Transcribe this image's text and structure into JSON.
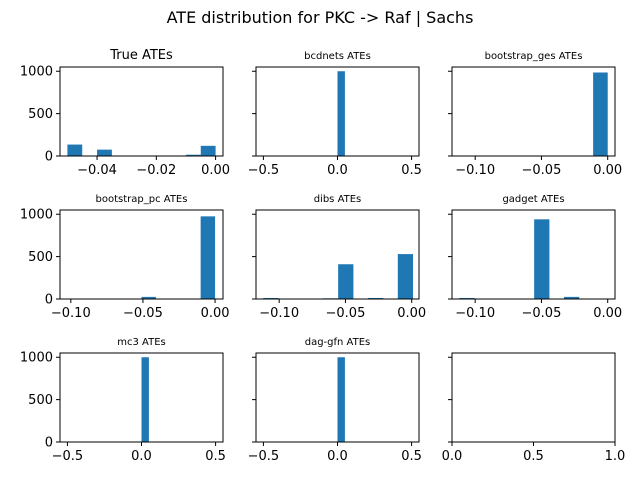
{
  "figure": {
    "suptitle": "ATE distribution for PKC -> Raf | Sachs",
    "bar_color": "#1f77b4"
  },
  "chart_data": [
    {
      "type": "bar",
      "title": "True ATEs",
      "xlim": [
        -0.0525,
        0.0025
      ],
      "ylim": [
        0,
        1050
      ],
      "xticks": [
        -0.04,
        -0.02,
        0.0
      ],
      "xtick_labels": [
        "−0.04",
        "−0.02",
        "0.00"
      ],
      "yticks": [
        0,
        500,
        1000
      ],
      "ytick_labels": [
        "0",
        "500",
        "1000"
      ],
      "bins": [
        {
          "x0": -0.05,
          "x1": -0.045,
          "value": 135
        },
        {
          "x0": -0.04,
          "x1": -0.035,
          "value": 75
        },
        {
          "x0": -0.01,
          "x1": -0.005,
          "value": 15
        },
        {
          "x0": -0.005,
          "x1": 0.0,
          "value": 120
        }
      ]
    },
    {
      "type": "bar",
      "title": "bcdnets ATEs",
      "xlim": [
        -0.55,
        0.55
      ],
      "ylim": [
        0,
        1050
      ],
      "xticks": [
        -0.5,
        0.0,
        0.5
      ],
      "xtick_labels": [
        "−0.5",
        "0.0",
        "0.5"
      ],
      "yticks": [
        0,
        500,
        1000
      ],
      "ytick_labels": [
        "",
        "",
        ""
      ],
      "bins": [
        {
          "x0": 0.0,
          "x1": 0.05,
          "value": 1000
        }
      ]
    },
    {
      "type": "bar",
      "title": "bootstrap_ges ATEs",
      "xlim": [
        -0.1175,
        0.0055
      ],
      "ylim": [
        0,
        1050
      ],
      "xticks": [
        -0.1,
        -0.05,
        0.0
      ],
      "xtick_labels": [
        "−0.10",
        "−0.05",
        "0.00"
      ],
      "yticks": [
        0,
        500,
        1000
      ],
      "ytick_labels": [
        "",
        "",
        ""
      ],
      "bins": [
        {
          "x0": -0.112,
          "x1": -0.1,
          "value": 3
        },
        {
          "x0": -0.011,
          "x1": 0.0,
          "value": 985
        }
      ]
    },
    {
      "type": "bar",
      "title": "bootstrap_pc ATEs",
      "xlim": [
        -0.1075,
        0.0055
      ],
      "ylim": [
        0,
        1050
      ],
      "xticks": [
        -0.1,
        -0.05,
        0.0
      ],
      "xtick_labels": [
        "−0.10",
        "−0.05",
        "0.00"
      ],
      "yticks": [
        0,
        500,
        1000
      ],
      "ytick_labels": [
        "0",
        "500",
        "1000"
      ],
      "bins": [
        {
          "x0": -0.102,
          "x1": -0.092,
          "value": 3
        },
        {
          "x0": -0.051,
          "x1": -0.041,
          "value": 25
        },
        {
          "x0": -0.01,
          "x1": 0.0,
          "value": 975
        }
      ]
    },
    {
      "type": "bar",
      "title": "dibs ATEs",
      "xlim": [
        -0.1175,
        0.0055
      ],
      "ylim": [
        0,
        1050
      ],
      "xticks": [
        -0.1,
        -0.05,
        0.0
      ],
      "xtick_labels": [
        "−0.10",
        "−0.05",
        "0.00"
      ],
      "yticks": [
        0,
        500,
        1000
      ],
      "ytick_labels": [
        "",
        "",
        ""
      ],
      "bins": [
        {
          "x0": -0.112,
          "x1": -0.1005,
          "value": 12
        },
        {
          "x0": -0.067,
          "x1": -0.0555,
          "value": 8
        },
        {
          "x0": -0.0555,
          "x1": -0.044,
          "value": 410
        },
        {
          "x0": -0.033,
          "x1": -0.0215,
          "value": 12
        },
        {
          "x0": -0.0105,
          "x1": 0.001,
          "value": 530
        }
      ]
    },
    {
      "type": "bar",
      "title": "gadget ATEs",
      "xlim": [
        -0.1175,
        0.0055
      ],
      "ylim": [
        0,
        1050
      ],
      "xticks": [
        -0.1,
        -0.05,
        0.0
      ],
      "xtick_labels": [
        "−0.10",
        "−0.05",
        "0.00"
      ],
      "yticks": [
        0,
        500,
        1000
      ],
      "ytick_labels": [
        "",
        "",
        ""
      ],
      "bins": [
        {
          "x0": -0.112,
          "x1": -0.1005,
          "value": 12
        },
        {
          "x0": -0.0555,
          "x1": -0.044,
          "value": 940
        },
        {
          "x0": -0.033,
          "x1": -0.0215,
          "value": 25
        },
        {
          "x0": -0.0105,
          "x1": 0.001,
          "value": 3
        }
      ]
    },
    {
      "type": "bar",
      "title": "mc3 ATEs",
      "xlim": [
        -0.55,
        0.55
      ],
      "ylim": [
        0,
        1050
      ],
      "xticks": [
        -0.5,
        0.0,
        0.5
      ],
      "xtick_labels": [
        "−0.5",
        "0.0",
        "0.5"
      ],
      "yticks": [
        0,
        500,
        1000
      ],
      "ytick_labels": [
        "0",
        "500",
        "1000"
      ],
      "bins": [
        {
          "x0": 0.0,
          "x1": 0.05,
          "value": 1000
        }
      ]
    },
    {
      "type": "bar",
      "title": "dag-gfn ATEs",
      "xlim": [
        -0.55,
        0.55
      ],
      "ylim": [
        0,
        1050
      ],
      "xticks": [
        -0.5,
        0.0,
        0.5
      ],
      "xtick_labels": [
        "−0.5",
        "0.0",
        "0.5"
      ],
      "yticks": [
        0,
        500,
        1000
      ],
      "ytick_labels": [
        "",
        "",
        ""
      ],
      "bins": [
        {
          "x0": 0.0,
          "x1": 0.05,
          "value": 1000
        }
      ]
    },
    {
      "type": "bar",
      "title": "",
      "xlim": [
        0,
        1
      ],
      "ylim": [
        0,
        1050
      ],
      "xticks": [
        0.0,
        0.5,
        1.0
      ],
      "xtick_labels": [
        "0.0",
        "0.5",
        "1.0"
      ],
      "yticks": [
        0,
        500,
        1000
      ],
      "ytick_labels": [
        "",
        "",
        ""
      ],
      "bins": []
    }
  ]
}
